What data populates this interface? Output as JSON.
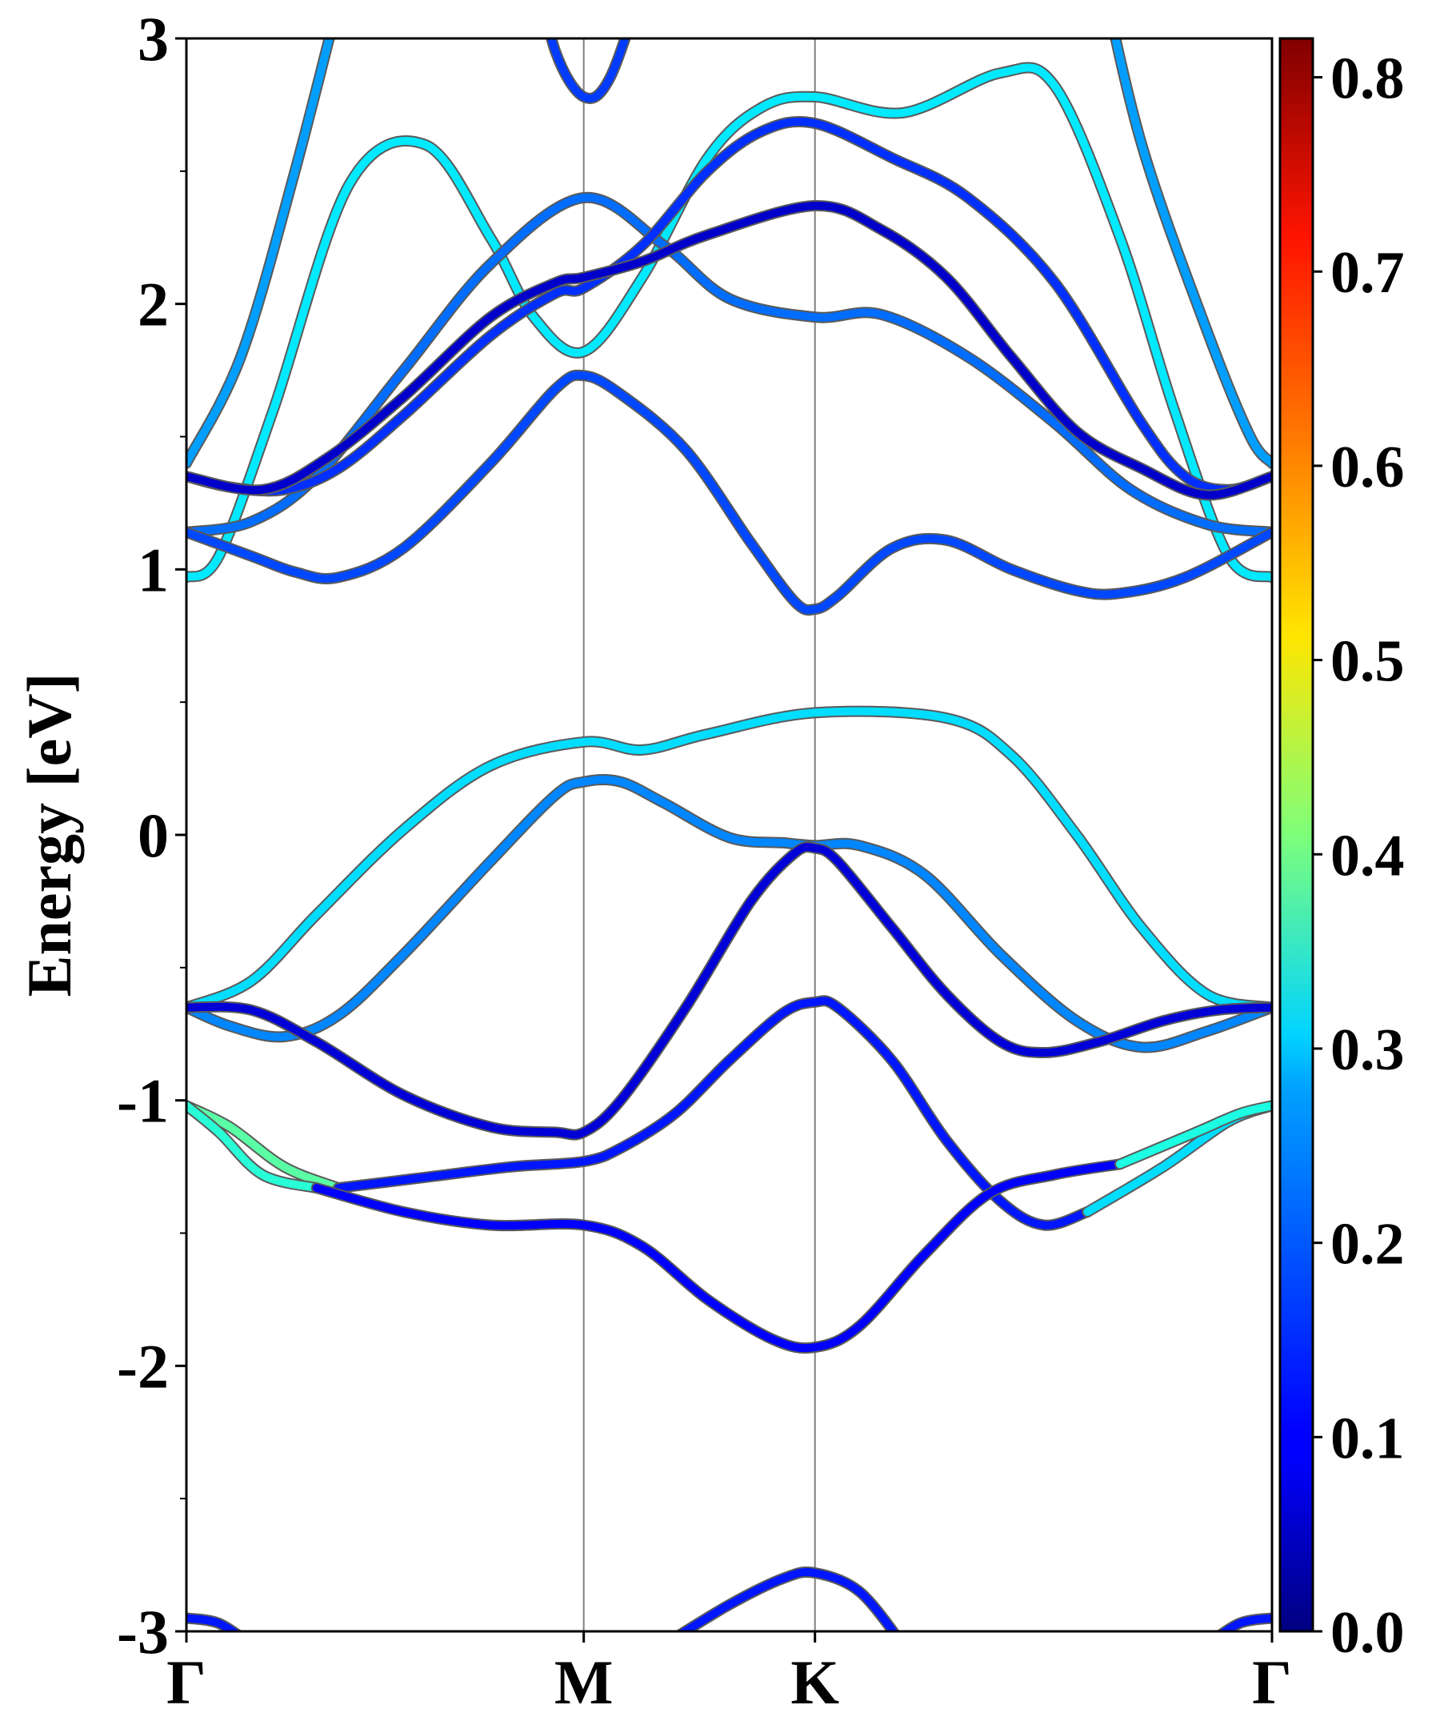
{
  "chart_data": {
    "type": "line",
    "ylabel": "Energy [eV]",
    "ylim": [
      -3,
      3
    ],
    "yticks": [
      "3",
      "2",
      "1",
      "0",
      "-1",
      "-2",
      "-3"
    ],
    "ytick_values": [
      3,
      2,
      1,
      0,
      -1,
      -2,
      -3
    ],
    "xlim": [
      0,
      1
    ],
    "kpoints": [
      {
        "label": "Γ",
        "x": 0.0
      },
      {
        "label": "M",
        "x": 0.366
      },
      {
        "label": "K",
        "x": 0.579
      },
      {
        "label": "Γ",
        "x": 1.0
      }
    ],
    "colorbar": {
      "colormap": "jet",
      "range": [
        0.0,
        0.82
      ],
      "tick_labels": [
        "0.0",
        "0.1",
        "0.2",
        "0.3",
        "0.4",
        "0.5",
        "0.6",
        "0.7",
        "0.8"
      ],
      "tick_values": [
        0.0,
        0.1,
        0.2,
        0.3,
        0.4,
        0.5,
        0.6,
        0.7,
        0.8
      ]
    },
    "series": [
      {
        "color_value": 0.23,
        "points": [
          [
            0.0,
            1.4
          ],
          [
            0.05,
            1.8
          ],
          [
            0.1,
            2.5
          ],
          [
            0.15,
            3.3
          ]
        ]
      },
      {
        "color_value": 0.29,
        "points": [
          [
            0.0,
            0.97
          ],
          [
            0.03,
            1.05
          ],
          [
            0.08,
            1.6
          ],
          [
            0.15,
            2.45
          ],
          [
            0.22,
            2.6
          ],
          [
            0.28,
            2.25
          ],
          [
            0.32,
            1.95
          ],
          [
            0.366,
            1.82
          ],
          [
            0.42,
            2.1
          ],
          [
            0.48,
            2.55
          ],
          [
            0.53,
            2.74
          ],
          [
            0.579,
            2.78
          ],
          [
            0.66,
            2.72
          ],
          [
            0.75,
            2.87
          ],
          [
            0.8,
            2.82
          ],
          [
            0.86,
            2.25
          ],
          [
            0.91,
            1.6
          ],
          [
            0.96,
            1.05
          ],
          [
            1.0,
            0.97
          ]
        ]
      },
      {
        "color_value": 0.19,
        "points": [
          [
            0.0,
            1.14
          ],
          [
            0.06,
            1.18
          ],
          [
            0.12,
            1.35
          ],
          [
            0.2,
            1.75
          ],
          [
            0.28,
            2.15
          ],
          [
            0.366,
            2.4
          ],
          [
            0.44,
            2.22
          ],
          [
            0.5,
            2.02
          ],
          [
            0.579,
            1.95
          ],
          [
            0.64,
            1.96
          ],
          [
            0.72,
            1.8
          ],
          [
            0.8,
            1.55
          ],
          [
            0.87,
            1.3
          ],
          [
            0.94,
            1.17
          ],
          [
            1.0,
            1.14
          ]
        ]
      },
      {
        "color_value": 0.14,
        "points": [
          [
            0.0,
            1.35
          ],
          [
            0.04,
            1.31
          ],
          [
            0.09,
            1.3
          ],
          [
            0.14,
            1.38
          ],
          [
            0.2,
            1.58
          ],
          [
            0.28,
            1.88
          ],
          [
            0.34,
            2.04
          ],
          [
            0.366,
            2.06
          ],
          [
            0.42,
            2.22
          ],
          [
            0.48,
            2.5
          ],
          [
            0.53,
            2.65
          ],
          [
            0.579,
            2.68
          ],
          [
            0.65,
            2.55
          ],
          [
            0.72,
            2.4
          ],
          [
            0.8,
            2.08
          ],
          [
            0.88,
            1.55
          ],
          [
            0.92,
            1.35
          ],
          [
            0.96,
            1.3
          ],
          [
            1.0,
            1.35
          ]
        ]
      },
      {
        "color_value": 0.06,
        "points": [
          [
            0.0,
            1.35
          ],
          [
            0.07,
            1.3
          ],
          [
            0.13,
            1.42
          ],
          [
            0.2,
            1.65
          ],
          [
            0.28,
            1.95
          ],
          [
            0.34,
            2.08
          ],
          [
            0.366,
            2.1
          ],
          [
            0.42,
            2.16
          ],
          [
            0.48,
            2.26
          ],
          [
            0.579,
            2.37
          ],
          [
            0.64,
            2.28
          ],
          [
            0.7,
            2.1
          ],
          [
            0.76,
            1.8
          ],
          [
            0.82,
            1.52
          ],
          [
            0.88,
            1.38
          ],
          [
            0.94,
            1.28
          ],
          [
            1.0,
            1.35
          ]
        ]
      },
      {
        "color_value": 0.16,
        "points": [
          [
            0.0,
            1.14
          ],
          [
            0.06,
            1.05
          ],
          [
            0.1,
            0.99
          ],
          [
            0.14,
            0.97
          ],
          [
            0.2,
            1.08
          ],
          [
            0.28,
            1.4
          ],
          [
            0.34,
            1.68
          ],
          [
            0.366,
            1.73
          ],
          [
            0.4,
            1.66
          ],
          [
            0.46,
            1.45
          ],
          [
            0.52,
            1.1
          ],
          [
            0.56,
            0.88
          ],
          [
            0.579,
            0.85
          ],
          [
            0.6,
            0.9
          ],
          [
            0.65,
            1.08
          ],
          [
            0.7,
            1.11
          ],
          [
            0.76,
            1.0
          ],
          [
            0.82,
            0.92
          ],
          [
            0.86,
            0.91
          ],
          [
            0.92,
            0.97
          ],
          [
            1.0,
            1.14
          ]
        ]
      },
      {
        "color_value": 0.15,
        "points": [
          [
            0.32,
            3.3
          ],
          [
            0.34,
            2.95
          ],
          [
            0.366,
            2.78
          ],
          [
            0.39,
            2.85
          ],
          [
            0.42,
            3.2
          ]
        ]
      },
      {
        "color_value": 0.23,
        "points": [
          [
            0.84,
            3.3
          ],
          [
            0.88,
            2.6
          ],
          [
            0.94,
            1.9
          ],
          [
            0.98,
            1.5
          ],
          [
            1.0,
            1.4
          ]
        ]
      },
      {
        "color_value": 0.28,
        "points": [
          [
            0.0,
            -0.65
          ],
          [
            0.06,
            -0.55
          ],
          [
            0.12,
            -0.3
          ],
          [
            0.2,
            0.02
          ],
          [
            0.28,
            0.26
          ],
          [
            0.366,
            0.35
          ],
          [
            0.42,
            0.32
          ],
          [
            0.48,
            0.38
          ],
          [
            0.579,
            0.46
          ],
          [
            0.7,
            0.44
          ],
          [
            0.76,
            0.3
          ],
          [
            0.82,
            0.0
          ],
          [
            0.88,
            -0.35
          ],
          [
            0.94,
            -0.6
          ],
          [
            1.0,
            -0.65
          ]
        ]
      },
      {
        "color_value": 0.21,
        "points": [
          [
            0.0,
            -0.65
          ],
          [
            0.04,
            -0.72
          ],
          [
            0.09,
            -0.76
          ],
          [
            0.14,
            -0.68
          ],
          [
            0.2,
            -0.45
          ],
          [
            0.28,
            -0.1
          ],
          [
            0.34,
            0.15
          ],
          [
            0.366,
            0.2
          ],
          [
            0.4,
            0.2
          ],
          [
            0.44,
            0.12
          ],
          [
            0.5,
            -0.01
          ],
          [
            0.55,
            -0.03
          ],
          [
            0.579,
            -0.04
          ],
          [
            0.62,
            -0.04
          ],
          [
            0.68,
            -0.15
          ],
          [
            0.75,
            -0.45
          ],
          [
            0.82,
            -0.7
          ],
          [
            0.88,
            -0.8
          ],
          [
            0.94,
            -0.74
          ],
          [
            1.0,
            -0.65
          ]
        ]
      },
      {
        "color_value": 0.07,
        "points": [
          [
            0.0,
            -0.65
          ],
          [
            0.06,
            -0.66
          ],
          [
            0.12,
            -0.78
          ],
          [
            0.2,
            -0.98
          ],
          [
            0.28,
            -1.1
          ],
          [
            0.34,
            -1.12
          ],
          [
            0.366,
            -1.12
          ],
          [
            0.4,
            -1.0
          ],
          [
            0.46,
            -0.65
          ],
          [
            0.52,
            -0.25
          ],
          [
            0.56,
            -0.07
          ],
          [
            0.579,
            -0.05
          ],
          [
            0.6,
            -0.1
          ],
          [
            0.65,
            -0.35
          ],
          [
            0.7,
            -0.6
          ],
          [
            0.75,
            -0.78
          ],
          [
            0.79,
            -0.82
          ],
          [
            0.84,
            -0.78
          ],
          [
            0.9,
            -0.7
          ],
          [
            0.95,
            -0.66
          ],
          [
            1.0,
            -0.65
          ]
        ]
      },
      {
        "color_value": 0.38,
        "points": [
          [
            0.0,
            -1.02
          ],
          [
            0.04,
            -1.1
          ],
          [
            0.09,
            -1.25
          ],
          [
            0.14,
            -1.33
          ]
        ]
      },
      {
        "color_value": 0.12,
        "points": [
          [
            0.14,
            -1.33
          ],
          [
            0.22,
            -1.29
          ],
          [
            0.3,
            -1.25
          ],
          [
            0.366,
            -1.23
          ],
          [
            0.4,
            -1.18
          ],
          [
            0.45,
            -1.05
          ],
          [
            0.5,
            -0.85
          ],
          [
            0.55,
            -0.67
          ],
          [
            0.579,
            -0.63
          ],
          [
            0.6,
            -0.65
          ],
          [
            0.65,
            -0.85
          ],
          [
            0.7,
            -1.15
          ],
          [
            0.75,
            -1.38
          ],
          [
            0.79,
            -1.47
          ],
          [
            0.83,
            -1.42
          ]
        ]
      },
      {
        "color_value": 0.28,
        "points": [
          [
            0.83,
            -1.42
          ],
          [
            0.9,
            -1.25
          ],
          [
            0.96,
            -1.08
          ],
          [
            1.0,
            -1.02
          ]
        ]
      },
      {
        "color_value": 0.34,
        "points": [
          [
            0.0,
            -1.02
          ],
          [
            0.03,
            -1.12
          ],
          [
            0.07,
            -1.28
          ],
          [
            0.12,
            -1.33
          ]
        ]
      },
      {
        "color_value": 0.1,
        "points": [
          [
            0.12,
            -1.33
          ],
          [
            0.2,
            -1.42
          ],
          [
            0.28,
            -1.47
          ],
          [
            0.366,
            -1.47
          ],
          [
            0.42,
            -1.55
          ],
          [
            0.48,
            -1.75
          ],
          [
            0.54,
            -1.9
          ],
          [
            0.579,
            -1.93
          ],
          [
            0.62,
            -1.85
          ],
          [
            0.68,
            -1.58
          ],
          [
            0.74,
            -1.35
          ],
          [
            0.8,
            -1.28
          ],
          [
            0.86,
            -1.24
          ]
        ]
      },
      {
        "color_value": 0.33,
        "points": [
          [
            0.86,
            -1.24
          ],
          [
            0.93,
            -1.12
          ],
          [
            0.97,
            -1.05
          ],
          [
            1.0,
            -1.02
          ]
        ]
      },
      {
        "color_value": 0.12,
        "points": [
          [
            0.0,
            -2.95
          ],
          [
            0.03,
            -2.97
          ],
          [
            0.06,
            -3.05
          ]
        ]
      },
      {
        "color_value": 0.12,
        "points": [
          [
            0.44,
            -3.05
          ],
          [
            0.5,
            -2.9
          ],
          [
            0.55,
            -2.8
          ],
          [
            0.579,
            -2.78
          ],
          [
            0.62,
            -2.85
          ],
          [
            0.66,
            -3.05
          ]
        ]
      },
      {
        "color_value": 0.12,
        "points": [
          [
            0.94,
            -3.05
          ],
          [
            0.97,
            -2.97
          ],
          [
            1.0,
            -2.95
          ]
        ]
      }
    ]
  }
}
